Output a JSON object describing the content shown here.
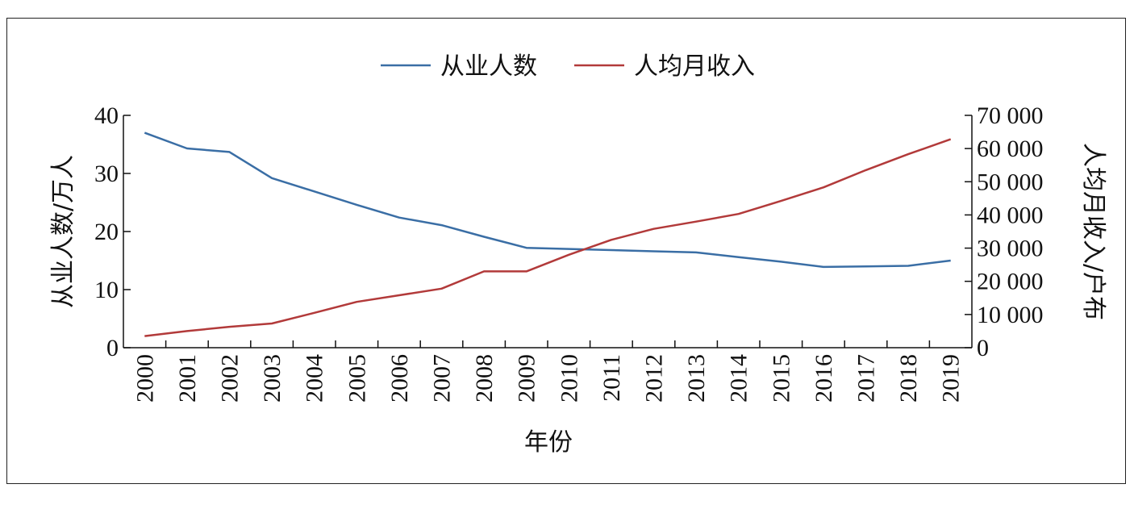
{
  "chart_data": {
    "type": "line",
    "x": [
      "2000",
      "2001",
      "2002",
      "2003",
      "2004",
      "2005",
      "2006",
      "2007",
      "2008",
      "2009",
      "2010",
      "2011",
      "2012",
      "2013",
      "2014",
      "2015",
      "2016",
      "2017",
      "2018",
      "2019"
    ],
    "xlabel": "年份",
    "ylabel_left": "从业人数/万人",
    "ylabel_right": "人均月收入/户布",
    "ylim_left": [
      0,
      40
    ],
    "ylim_right": [
      0,
      70000
    ],
    "yticks_left": [
      "0",
      "10",
      "20",
      "30",
      "40"
    ],
    "yticks_right": [
      "0",
      "10 000",
      "20 000",
      "30 000",
      "40 000",
      "50 000",
      "60 000",
      "70 000"
    ],
    "legend_position": "top-center",
    "grid": false,
    "series": [
      {
        "name": "从业人数",
        "axis": "left",
        "color": "#3a6ea5",
        "values": [
          37.0,
          34.3,
          33.7,
          29.2,
          26.9,
          24.6,
          22.4,
          21.1,
          19.1,
          17.2,
          17.0,
          16.8,
          16.6,
          16.4,
          15.6,
          14.8,
          13.9,
          14.0,
          14.1,
          15.0
        ]
      },
      {
        "name": "人均月收入",
        "axis": "right",
        "color": "#b23a3a",
        "values": [
          3500,
          5000,
          6300,
          7300,
          10500,
          13800,
          15800,
          17800,
          23000,
          23000,
          28000,
          32500,
          35800,
          38000,
          40300,
          44200,
          48300,
          53500,
          58300,
          62800
        ]
      }
    ]
  }
}
